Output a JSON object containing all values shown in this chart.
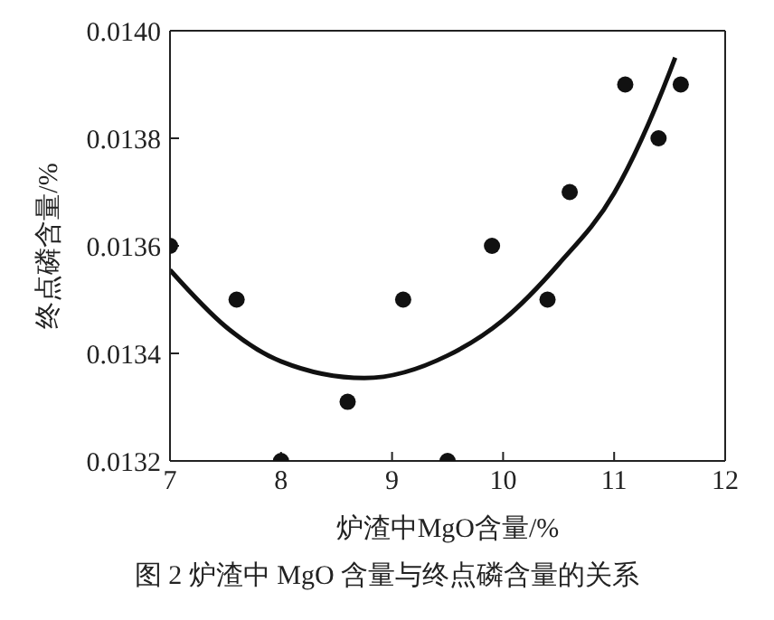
{
  "chart_data": {
    "type": "scatter",
    "xlabel": "炉渣中MgO含量/%",
    "ylabel": "终点磷含量/%",
    "annotations": [
      "图 2  炉渣中 MgO 含量与终点磷含量的关系"
    ],
    "xlim": [
      7,
      12
    ],
    "xticks": [
      7,
      8,
      9,
      10,
      11,
      12
    ],
    "ylim": [
      0.0132,
      0.014
    ],
    "yticks": [
      {
        "value": 0.0132,
        "label": "0.0132"
      },
      {
        "value": 0.0134,
        "label": "0.0134"
      },
      {
        "value": 0.0136,
        "label": "0.0136"
      },
      {
        "value": 0.0138,
        "label": "0.0138"
      },
      {
        "value": 0.014,
        "label": "0.0140"
      }
    ],
    "series": [
      {
        "color": "#111111",
        "marker": "circle",
        "x": [
          7,
          7.6,
          8,
          8.6,
          9.1,
          9.5,
          9.9,
          10.4,
          10.6,
          11.1,
          11.4,
          11.6
        ],
        "values": [
          0.0136,
          0.0135,
          0.0132,
          0.01331,
          0.0135,
          0.0132,
          0.0136,
          0.0135,
          0.0137,
          0.0139,
          0.0138,
          0.0139
        ]
      },
      {
        "type": "line",
        "color": "#111111",
        "marker": "none",
        "line_style": "solid",
        "x": [
          7,
          7.5,
          8,
          8.75,
          9.5,
          10,
          10.5,
          11,
          11.5,
          11.55
        ],
        "values": [
          0.013555,
          0.01345,
          0.013385,
          0.013354,
          0.013396,
          0.013462,
          0.013566,
          0.013698,
          0.013923,
          0.01395
        ]
      }
    ]
  }
}
